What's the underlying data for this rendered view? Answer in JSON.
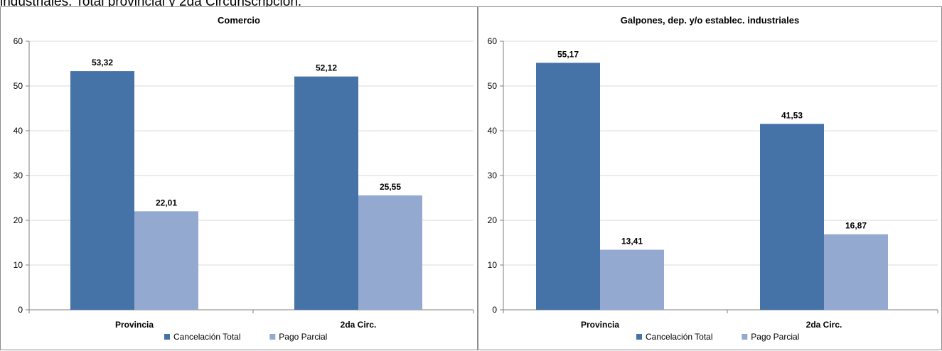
{
  "caption": "industriales. Total provincial y 2da Circunscripción.",
  "colors": {
    "series1": "#4572a7",
    "series2": "#93a9d0",
    "grid": "#d9d9d9",
    "axis": "#7f7f7f"
  },
  "chart_data": [
    {
      "type": "bar",
      "title": "Comercio",
      "categories": [
        "Provincia",
        "2da Circ."
      ],
      "series": [
        {
          "name": "Cancelación Total",
          "values": [
            53.32,
            52.12
          ],
          "labels": [
            "53,32",
            "52,12"
          ]
        },
        {
          "name": "Pago Parcial",
          "values": [
            22.01,
            25.55
          ],
          "labels": [
            "22,01",
            "25,55"
          ]
        }
      ],
      "ylim": [
        0,
        60
      ],
      "yticks": [
        0,
        10,
        20,
        30,
        40,
        50,
        60
      ],
      "grid": true,
      "legend": "bottom-center"
    },
    {
      "type": "bar",
      "title": "Galpones, dep. y/o establec. industriales",
      "categories": [
        "Provincia",
        "2da Circ."
      ],
      "series": [
        {
          "name": "Cancelación Total",
          "values": [
            55.17,
            41.53
          ],
          "labels": [
            "55,17",
            "41,53"
          ]
        },
        {
          "name": "Pago Parcial",
          "values": [
            13.41,
            16.87
          ],
          "labels": [
            "13,41",
            "16,87"
          ]
        }
      ],
      "ylim": [
        0,
        60
      ],
      "yticks": [
        0,
        10,
        20,
        30,
        40,
        50,
        60
      ],
      "grid": true,
      "legend": "bottom-center"
    }
  ]
}
